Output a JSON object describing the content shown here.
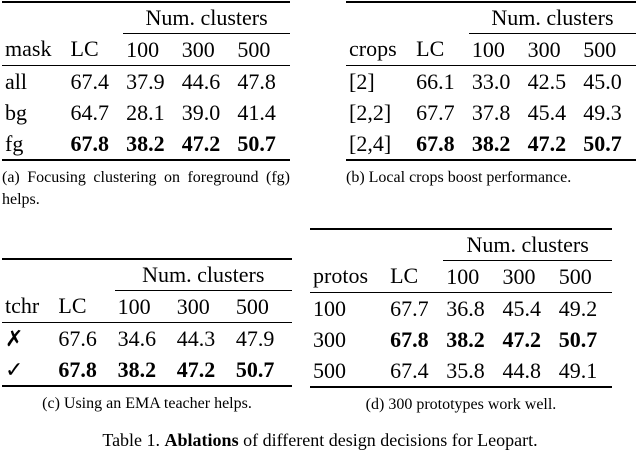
{
  "tables": [
    {
      "group_header": "Num. clusters",
      "columns": [
        "mask",
        "LC",
        "100",
        "300",
        "500"
      ],
      "rows": [
        [
          "all",
          "67.4",
          "37.9",
          "44.6",
          "47.8"
        ],
        [
          "bg",
          "64.7",
          "28.1",
          "39.0",
          "41.4"
        ],
        [
          "fg",
          "67.8",
          "38.2",
          "47.2",
          "50.7"
        ]
      ],
      "bold_rows": [
        2
      ],
      "caption": "(a) Focusing clustering on foreground (fg) helps."
    },
    {
      "group_header": "Num. clusters",
      "columns": [
        "crops",
        "LC",
        "100",
        "300",
        "500"
      ],
      "rows": [
        [
          "[2]",
          "66.1",
          "33.0",
          "42.5",
          "45.0"
        ],
        [
          "[2,2]",
          "67.7",
          "37.8",
          "45.4",
          "49.3"
        ],
        [
          "[2,4]",
          "67.8",
          "38.2",
          "47.2",
          "50.7"
        ]
      ],
      "bold_rows": [
        2
      ],
      "caption": "(b) Local crops boost performance."
    },
    {
      "group_header": "Num. clusters",
      "columns": [
        "tchr",
        "LC",
        "100",
        "300",
        "500"
      ],
      "rows": [
        [
          "✗",
          "67.6",
          "34.6",
          "44.3",
          "47.9"
        ],
        [
          "✓",
          "67.8",
          "38.2",
          "47.2",
          "50.7"
        ]
      ],
      "bold_rows": [
        1
      ],
      "caption": "(c) Using an EMA teacher helps."
    },
    {
      "group_header": "Num. clusters",
      "columns": [
        "protos",
        "LC",
        "100",
        "300",
        "500"
      ],
      "rows": [
        [
          "100",
          "67.7",
          "36.8",
          "45.4",
          "49.2"
        ],
        [
          "300",
          "67.8",
          "38.2",
          "47.2",
          "50.7"
        ],
        [
          "500",
          "67.4",
          "35.8",
          "44.8",
          "49.1"
        ]
      ],
      "bold_rows": [
        1
      ],
      "caption": "(d) 300 prototypes work well."
    }
  ],
  "caption": {
    "label": "Table 1.",
    "emphasis": "Ablations",
    "text": "of different design decisions for Leopart."
  }
}
